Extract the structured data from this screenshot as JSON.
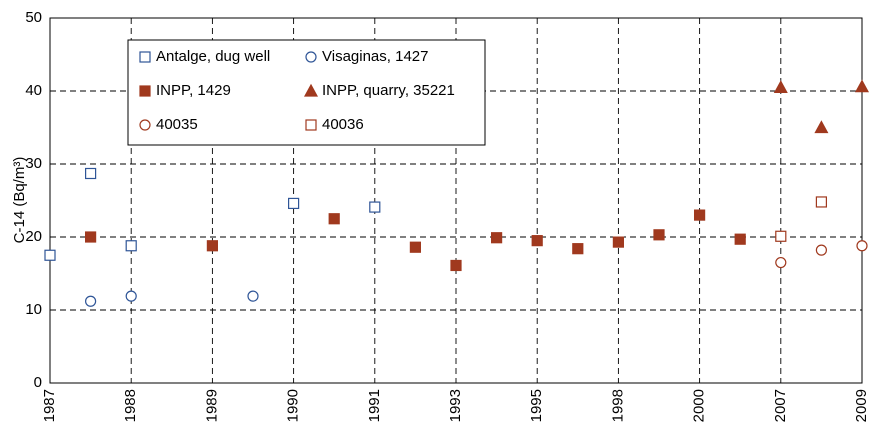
{
  "chart_data": {
    "type": "scatter",
    "y_label": "C-14 (Bq/m³)",
    "categories": [
      "1987",
      null,
      "1988",
      null,
      "1989",
      null,
      "1990",
      null,
      "1991",
      null,
      "1993",
      null,
      "1995",
      null,
      "1998",
      null,
      "2000",
      null,
      "2007",
      null,
      "2009"
    ],
    "ylim": [
      0,
      50
    ],
    "yticks": [
      0,
      10,
      20,
      30,
      40,
      50
    ],
    "grid": true,
    "series": [
      {
        "name": "Antalge, dug well",
        "color": "#2f5597",
        "marker": "square",
        "filled": false,
        "values": [
          17.5,
          28.7,
          18.8,
          null,
          null,
          null,
          24.6,
          null,
          24.1,
          null,
          null,
          null,
          null,
          null,
          null,
          null,
          null,
          null,
          null,
          null,
          null
        ]
      },
      {
        "name": "Visaginas, 1427",
        "color": "#2f5597",
        "marker": "circle",
        "filled": false,
        "values": [
          null,
          11.2,
          11.9,
          null,
          null,
          11.9,
          null,
          null,
          null,
          null,
          null,
          null,
          null,
          null,
          null,
          null,
          null,
          null,
          null,
          null,
          null
        ]
      },
      {
        "name": "INPP, 1429",
        "color": "#a0391e",
        "marker": "square",
        "filled": true,
        "values": [
          null,
          20.0,
          null,
          null,
          18.8,
          null,
          null,
          22.5,
          null,
          18.6,
          16.1,
          19.9,
          19.5,
          18.4,
          19.3,
          20.3,
          23.0,
          19.7,
          null,
          null,
          null
        ]
      },
      {
        "name": "INPP, quarry, 35221",
        "color": "#a0391e",
        "marker": "triangle",
        "filled": true,
        "values": [
          null,
          null,
          null,
          null,
          null,
          null,
          null,
          null,
          null,
          null,
          null,
          null,
          null,
          null,
          null,
          null,
          null,
          null,
          40.5,
          35.0,
          40.6
        ]
      },
      {
        "name": "40035",
        "color": "#a0391e",
        "marker": "circle",
        "filled": false,
        "values": [
          null,
          null,
          null,
          null,
          null,
          null,
          null,
          null,
          null,
          null,
          null,
          null,
          null,
          null,
          null,
          null,
          null,
          null,
          16.5,
          18.2,
          18.8
        ]
      },
      {
        "name": "40036",
        "color": "#a0391e",
        "marker": "square",
        "filled": false,
        "values": [
          null,
          null,
          null,
          null,
          null,
          null,
          null,
          null,
          null,
          null,
          null,
          null,
          null,
          null,
          null,
          null,
          null,
          null,
          20.1,
          24.8,
          null
        ]
      }
    ]
  }
}
